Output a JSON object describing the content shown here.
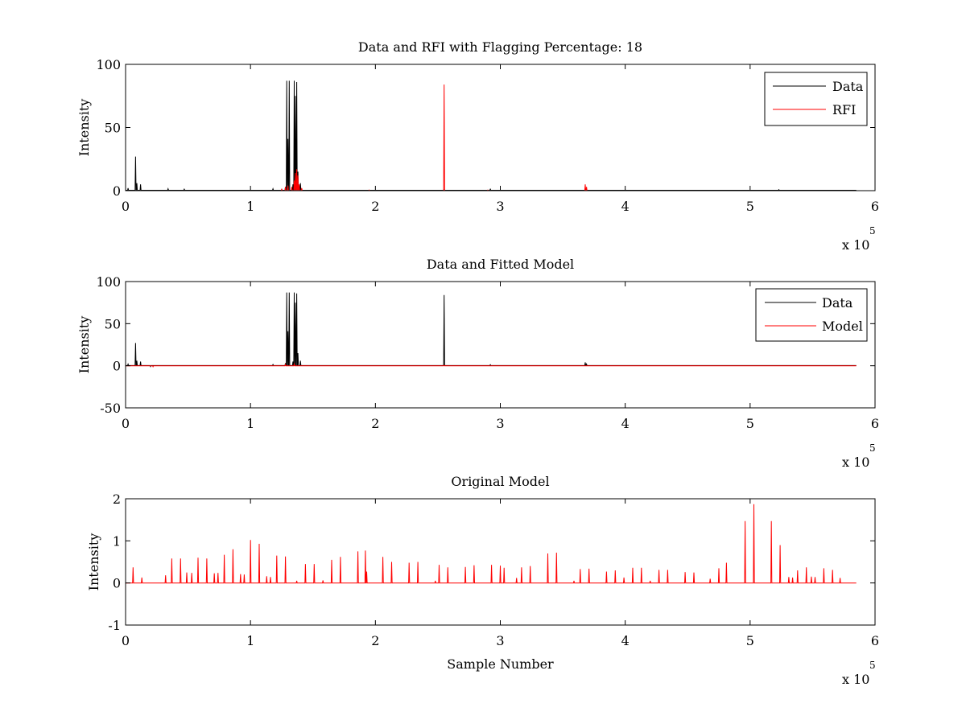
{
  "chart_data": [
    {
      "type": "line",
      "title": "Data and RFI with Flagging Percentage: 18",
      "xlabel": "",
      "ylabel": "Intensity",
      "xlim": [
        0,
        600000
      ],
      "ylim": [
        0,
        100
      ],
      "xticks": [
        0,
        1,
        2,
        3,
        4,
        5,
        6
      ],
      "yticks": [
        0,
        50,
        100
      ],
      "x_multiplier": "x 10",
      "x_multiplier_exp": "5",
      "legend_position": "top-right",
      "series": [
        {
          "name": "Data",
          "color": "#000000",
          "baseline": 0.3,
          "spikes": [
            [
              2000,
              2
            ],
            [
              8000,
              27
            ],
            [
              9000,
              6
            ],
            [
              12000,
              5
            ],
            [
              34000,
              1.5
            ],
            [
              47000,
              1.2
            ],
            [
              118000,
              1.5
            ],
            [
              128000,
              3
            ],
            [
              129000,
              87
            ],
            [
              130000,
              41
            ],
            [
              131000,
              87
            ],
            [
              134000,
              5
            ],
            [
              135000,
              87
            ],
            [
              136000,
              75
            ],
            [
              137000,
              86
            ],
            [
              138000,
              15
            ],
            [
              140000,
              6
            ],
            [
              255000,
              0.6
            ],
            [
              292000,
              1.2
            ],
            [
              368000,
              1.0
            ],
            [
              400000,
              0.6
            ],
            [
              523000,
              0.8
            ]
          ]
        },
        {
          "name": "RFI",
          "color": "#ff0000",
          "baseline": 0.0,
          "spikes": [
            [
              125000,
              1.5
            ],
            [
              128000,
              3
            ],
            [
              130000,
              4
            ],
            [
              133000,
              3
            ],
            [
              135000,
              8
            ],
            [
              136000,
              14
            ],
            [
              137000,
              17
            ],
            [
              138000,
              12
            ],
            [
              139000,
              5
            ],
            [
              141000,
              2
            ],
            [
              255000,
              84
            ],
            [
              368000,
              5
            ],
            [
              369000,
              3
            ],
            [
              290000,
              0.5
            ],
            [
              195000,
              0.5
            ]
          ]
        }
      ]
    },
    {
      "type": "line",
      "title": "Data and Fitted Model",
      "xlabel": "",
      "ylabel": "Intensity",
      "xlim": [
        0,
        600000
      ],
      "ylim": [
        -50,
        100
      ],
      "xticks": [
        0,
        1,
        2,
        3,
        4,
        5,
        6
      ],
      "yticks": [
        -50,
        0,
        50,
        100
      ],
      "x_multiplier": "x 10",
      "x_multiplier_exp": "5",
      "legend_position": "top-right",
      "series": [
        {
          "name": "Data",
          "color": "#000000",
          "baseline": 0.3,
          "spikes": [
            [
              2000,
              2
            ],
            [
              8000,
              27
            ],
            [
              9000,
              6
            ],
            [
              12000,
              5
            ],
            [
              20000,
              -1
            ],
            [
              118000,
              1.5
            ],
            [
              128000,
              3
            ],
            [
              129000,
              87
            ],
            [
              130000,
              41
            ],
            [
              131000,
              87
            ],
            [
              134000,
              5
            ],
            [
              135000,
              87
            ],
            [
              136000,
              75
            ],
            [
              137000,
              86
            ],
            [
              138000,
              15
            ],
            [
              140000,
              6
            ],
            [
              255000,
              84
            ],
            [
              292000,
              1.2
            ],
            [
              368000,
              4
            ],
            [
              369000,
              2
            ]
          ]
        },
        {
          "name": "Model",
          "color": "#ff0000",
          "baseline": 0.0,
          "spikes": [
            [
              22000,
              -1.2
            ],
            [
              128000,
              1.5
            ],
            [
              135000,
              2
            ],
            [
              255000,
              0.5
            ]
          ]
        }
      ]
    },
    {
      "type": "line",
      "title": "Original Model",
      "xlabel": "Sample Number",
      "ylabel": "Intensity",
      "xlim": [
        0,
        600000
      ],
      "ylim": [
        -1,
        2
      ],
      "xticks": [
        0,
        1,
        2,
        3,
        4,
        5,
        6
      ],
      "yticks": [
        -1,
        0,
        1,
        2
      ],
      "x_multiplier": "x 10",
      "x_multiplier_exp": "5",
      "series": [
        {
          "name": "",
          "color": "#ff0000",
          "baseline": 0.0,
          "spikes": [
            [
              6000,
              0.37
            ],
            [
              13000,
              0.13
            ],
            [
              32000,
              0.18
            ],
            [
              37000,
              0.58
            ],
            [
              44000,
              0.58
            ],
            [
              49000,
              0.25
            ],
            [
              53000,
              0.24
            ],
            [
              58000,
              0.6
            ],
            [
              65000,
              0.58
            ],
            [
              71000,
              0.23
            ],
            [
              74000,
              0.24
            ],
            [
              79000,
              0.67
            ],
            [
              86000,
              0.8
            ],
            [
              92000,
              0.21
            ],
            [
              95000,
              0.2
            ],
            [
              100000,
              1.02
            ],
            [
              107000,
              0.93
            ],
            [
              113000,
              0.16
            ],
            [
              116000,
              0.14
            ],
            [
              121000,
              0.65
            ],
            [
              128000,
              0.63
            ],
            [
              137000,
              0.05
            ],
            [
              144000,
              0.45
            ],
            [
              151000,
              0.45
            ],
            [
              158000,
              0.06
            ],
            [
              165000,
              0.55
            ],
            [
              172000,
              0.62
            ],
            [
              186000,
              0.75
            ],
            [
              192000,
              0.77
            ],
            [
              193000,
              0.27
            ],
            [
              206000,
              0.62
            ],
            [
              213000,
              0.5
            ],
            [
              227000,
              0.48
            ],
            [
              234000,
              0.5
            ],
            [
              248000,
              0.05
            ],
            [
              251000,
              0.43
            ],
            [
              258000,
              0.37
            ],
            [
              272000,
              0.38
            ],
            [
              279000,
              0.42
            ],
            [
              293000,
              0.43
            ],
            [
              300000,
              0.41
            ],
            [
              303000,
              0.36
            ],
            [
              313000,
              0.12
            ],
            [
              317000,
              0.37
            ],
            [
              324000,
              0.4
            ],
            [
              338000,
              0.7
            ],
            [
              345000,
              0.72
            ],
            [
              359000,
              0.05
            ],
            [
              364000,
              0.33
            ],
            [
              371000,
              0.34
            ],
            [
              385000,
              0.27
            ],
            [
              392000,
              0.3
            ],
            [
              399000,
              0.13
            ],
            [
              406000,
              0.36
            ],
            [
              413000,
              0.36
            ],
            [
              420000,
              0.05
            ],
            [
              427000,
              0.31
            ],
            [
              434000,
              0.31
            ],
            [
              448000,
              0.26
            ],
            [
              455000,
              0.25
            ],
            [
              468000,
              0.1
            ],
            [
              475000,
              0.35
            ],
            [
              481000,
              0.48
            ],
            [
              496000,
              1.47
            ],
            [
              503000,
              1.87
            ],
            [
              517000,
              1.47
            ],
            [
              524000,
              0.9
            ],
            [
              531000,
              0.14
            ],
            [
              534000,
              0.13
            ],
            [
              538000,
              0.3
            ],
            [
              545000,
              0.37
            ],
            [
              549000,
              0.15
            ],
            [
              552000,
              0.14
            ],
            [
              559000,
              0.35
            ],
            [
              566000,
              0.31
            ],
            [
              572000,
              0.12
            ]
          ]
        }
      ]
    }
  ]
}
